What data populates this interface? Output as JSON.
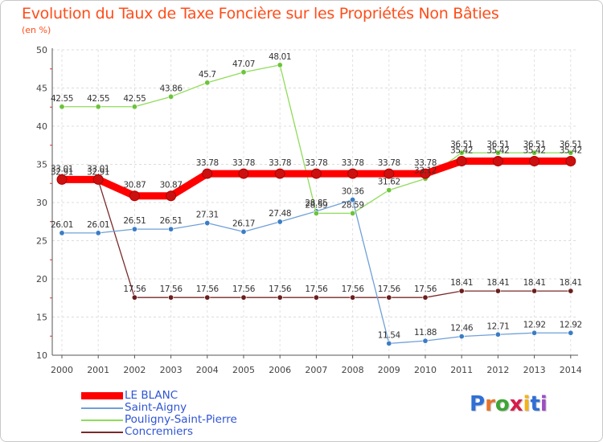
{
  "title": "Evolution du Taux de Taxe Foncière sur les Propriétés Non Bâties",
  "subtitle": "(en %)",
  "logo": {
    "text": "Proxiti",
    "colors": [
      "#2f6fd6",
      "#e8742a",
      "#3fa535",
      "#d81b4a",
      "#f2b21b",
      "#2f6fd6",
      "#9b4fc4"
    ]
  },
  "chart_data": {
    "type": "line",
    "categories": [
      "2000",
      "2001",
      "2002",
      "2003",
      "2004",
      "2005",
      "2006",
      "2007",
      "2008",
      "2009",
      "2010",
      "2011",
      "2012",
      "2013",
      "2014"
    ],
    "ylim": [
      10,
      50
    ],
    "yticks": [
      10,
      15,
      20,
      25,
      30,
      35,
      40,
      45,
      50
    ],
    "grid": true,
    "series": [
      {
        "name": "LE BLANC",
        "color": "#ff0000",
        "marker": "#cc1010",
        "width": 9,
        "values": [
          33.01,
          33.01,
          30.87,
          30.87,
          33.78,
          33.78,
          33.78,
          33.78,
          33.78,
          33.78,
          33.78,
          35.42,
          35.42,
          35.42,
          35.42
        ],
        "labels": [
          "33.01",
          "33.01",
          "30.87",
          "30.87",
          "33.78",
          "33.78",
          "33.78",
          "33.78",
          "33.78",
          "33.78",
          "33.78",
          "35.42",
          "35.42",
          "35.42",
          "35.42"
        ]
      },
      {
        "name": "Saint-Aigny",
        "color": "#6fa0d8",
        "marker": "#3b7dc4",
        "width": 1.3,
        "values": [
          26.01,
          26.01,
          26.51,
          26.51,
          27.31,
          26.17,
          27.48,
          28.85,
          30.36,
          11.54,
          11.88,
          12.46,
          12.71,
          12.92,
          12.92
        ],
        "labels": [
          "26.01",
          "26.01",
          "26.51",
          "26.51",
          "27.31",
          "26.17",
          "27.48",
          "28.85",
          "30.36",
          "11.54",
          "11.88",
          "12.46",
          "12.71",
          "12.92",
          "12.92"
        ]
      },
      {
        "name": "Pouligny-Saint-Pierre",
        "color": "#8fdc5a",
        "marker": "#6cc43a",
        "width": 1.3,
        "values": [
          42.55,
          42.55,
          42.55,
          43.86,
          45.7,
          47.07,
          48.01,
          28.59,
          28.59,
          31.62,
          33.12,
          36.51,
          36.51,
          36.51,
          36.51
        ],
        "labels": [
          "42.55",
          "42.55",
          "42.55",
          "43.86",
          "45.7",
          "47.07",
          "48.01",
          "28.59",
          "28.59",
          "31.62",
          "33.12",
          "36.51",
          "36.51",
          "36.51",
          "36.51"
        ]
      },
      {
        "name": "Concremiers",
        "color": "#7a2a2a",
        "marker": "#6b1f1f",
        "width": 1.3,
        "values": [
          32.91,
          32.91,
          17.56,
          17.56,
          17.56,
          17.56,
          17.56,
          17.56,
          17.56,
          17.56,
          17.56,
          18.41,
          18.41,
          18.41,
          18.41
        ],
        "labels": [
          "32.91",
          "32.91",
          "17.56",
          "17.56",
          "17.56",
          "17.56",
          "17.56",
          "17.56",
          "17.56",
          "17.56",
          "17.56",
          "18.41",
          "18.41",
          "18.41",
          "18.41"
        ]
      }
    ]
  }
}
